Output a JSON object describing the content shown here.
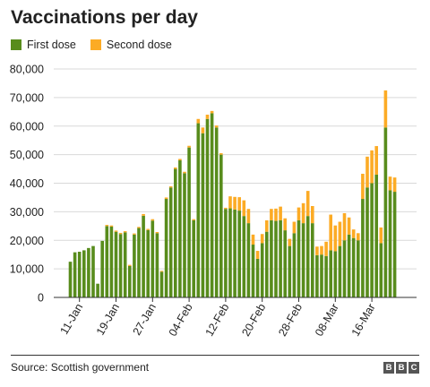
{
  "title": "Vaccinations per day",
  "source": "Source: Scottish government",
  "logo": [
    "B",
    "B",
    "C"
  ],
  "colors": {
    "first": "#588c1c",
    "second": "#fcab25",
    "grid": "#d9d9d9",
    "axis": "#333333",
    "text": "#222222"
  },
  "chart_data": {
    "type": "bar",
    "stacked": true,
    "title": "Vaccinations per day",
    "xlabel": "",
    "ylabel": "",
    "ylim": [
      0,
      80000
    ],
    "yticks": [
      0,
      10000,
      20000,
      30000,
      40000,
      50000,
      60000,
      70000,
      80000
    ],
    "yticklabels": [
      "0",
      "10,000",
      "20,000",
      "30,000",
      "40,000",
      "50,000",
      "60,000",
      "70,000",
      "80,000"
    ],
    "grid": true,
    "legend_position": "top-left",
    "categories": [
      "09-Jan",
      "10-Jan",
      "11-Jan",
      "12-Jan",
      "13-Jan",
      "14-Jan",
      "15-Jan",
      "16-Jan",
      "17-Jan",
      "18-Jan",
      "19-Jan",
      "20-Jan",
      "21-Jan",
      "22-Jan",
      "23-Jan",
      "24-Jan",
      "25-Jan",
      "26-Jan",
      "27-Jan",
      "28-Jan",
      "29-Jan",
      "30-Jan",
      "31-Jan",
      "01-Feb",
      "02-Feb",
      "03-Feb",
      "04-Feb",
      "05-Feb",
      "06-Feb",
      "07-Feb",
      "08-Feb",
      "09-Feb",
      "10-Feb",
      "11-Feb",
      "12-Feb",
      "13-Feb",
      "14-Feb",
      "15-Feb",
      "16-Feb",
      "17-Feb",
      "18-Feb",
      "19-Feb",
      "20-Feb",
      "21-Feb",
      "22-Feb",
      "23-Feb",
      "24-Feb",
      "25-Feb",
      "26-Feb",
      "27-Feb",
      "28-Feb",
      "01-Mar",
      "02-Mar",
      "03-Mar",
      "04-Mar",
      "05-Mar",
      "06-Mar",
      "07-Mar",
      "08-Mar",
      "09-Mar",
      "10-Mar",
      "11-Mar",
      "12-Mar",
      "13-Mar",
      "14-Mar",
      "15-Mar",
      "16-Mar",
      "17-Mar",
      "18-Mar",
      "19-Mar",
      "20-Mar",
      "21-Mar"
    ],
    "xtick_labels": [
      "11-Jan",
      "19-Jan",
      "27-Jan",
      "04-Feb",
      "12-Feb",
      "20-Feb",
      "28-Feb",
      "08-Mar",
      "16-Mar"
    ],
    "series": [
      {
        "name": "First dose",
        "values": [
          12500,
          15800,
          16000,
          16500,
          17300,
          18000,
          4800,
          19800,
          25000,
          24800,
          23000,
          22200,
          22800,
          11000,
          22000,
          24300,
          28600,
          23600,
          26900,
          22500,
          9000,
          34500,
          38500,
          45000,
          48000,
          43500,
          52500,
          27000,
          61000,
          57500,
          62500,
          64500,
          59500,
          50000,
          31000,
          31200,
          30800,
          30400,
          28500,
          26000,
          18500,
          13500,
          19000,
          23000,
          27000,
          26800,
          27000,
          23500,
          18000,
          22500,
          27000,
          26000,
          28500,
          26000,
          14800,
          15000,
          14500,
          16500,
          16200,
          18000,
          20000,
          22000,
          20800,
          20000,
          34500,
          38500,
          40000,
          43000,
          19000,
          59500,
          37500,
          37000
        ]
      },
      {
        "name": "Second dose",
        "values": [
          0,
          0,
          0,
          0,
          0,
          0,
          0,
          0,
          400,
          400,
          400,
          400,
          400,
          400,
          400,
          400,
          600,
          400,
          500,
          400,
          300,
          500,
          400,
          500,
          500,
          500,
          600,
          400,
          1500,
          2000,
          1500,
          800,
          700,
          500,
          400,
          4200,
          4400,
          4700,
          5500,
          5000,
          3500,
          2800,
          3200,
          4000,
          4000,
          4300,
          4800,
          4200,
          2500,
          4000,
          4500,
          7000,
          8800,
          6000,
          3000,
          3000,
          5000,
          12500,
          9000,
          8500,
          9500,
          6000,
          3000,
          2500,
          8800,
          10800,
          11500,
          10000,
          5500,
          13000,
          4800,
          5000
        ]
      }
    ]
  }
}
